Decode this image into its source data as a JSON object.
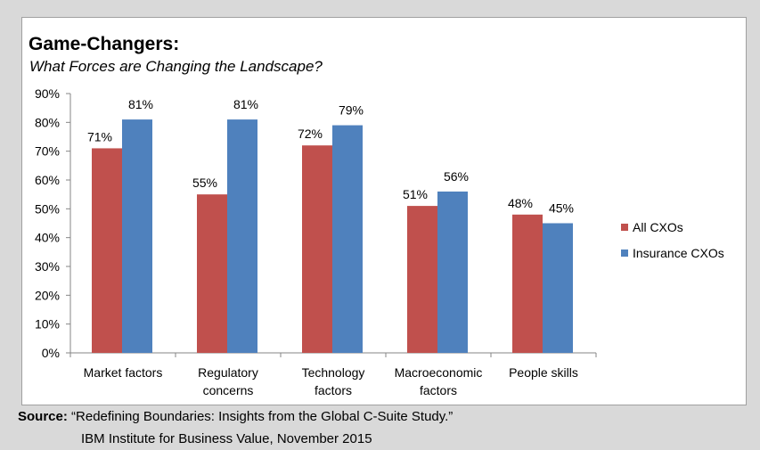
{
  "chart_data": {
    "type": "bar",
    "title": "Game-Changers:",
    "subtitle": "What Forces are Changing the Landscape?",
    "categories": [
      "Market factors",
      "Regulatory concerns",
      "Technology factors",
      "Macroeconomic factors",
      "People skills"
    ],
    "category_lines": [
      [
        "Market factors"
      ],
      [
        "Regulatory",
        "concerns"
      ],
      [
        "Technology",
        "factors"
      ],
      [
        "Macroeconomic",
        "factors"
      ],
      [
        "People skills"
      ]
    ],
    "series": [
      {
        "name": "All CXOs",
        "values": [
          71,
          55,
          72,
          51,
          48
        ],
        "color": "#c0504d"
      },
      {
        "name": "Insurance CXOs",
        "values": [
          81,
          81,
          79,
          56,
          45
        ],
        "color": "#4f81bd"
      }
    ],
    "data_labels": [
      [
        "71%",
        "55%",
        "72%",
        "51%",
        "48%"
      ],
      [
        "81%",
        "81%",
        "79%",
        "56%",
        "45%"
      ]
    ],
    "ylim": [
      0,
      90
    ],
    "yticks": [
      "0%",
      "10%",
      "20%",
      "30%",
      "40%",
      "50%",
      "60%",
      "70%",
      "80%",
      "90%"
    ],
    "grid": false,
    "legend_position": "right"
  },
  "source": {
    "label": "Source:",
    "line1": "“Redefining Boundaries: Insights from the Global C-Suite Study.”",
    "line2": "IBM Institute for Business Value, November 2015"
  }
}
